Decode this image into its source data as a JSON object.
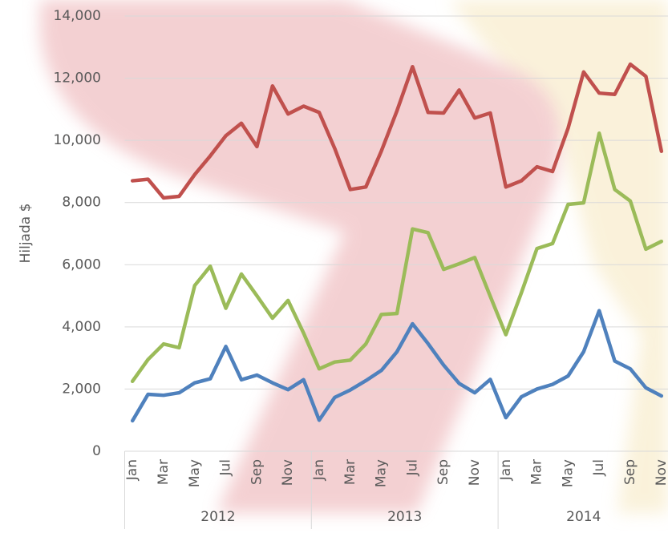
{
  "chart_data": {
    "type": "line",
    "y_axis_label": "Hiljada $",
    "categories": [
      "Jan",
      null,
      "Mar",
      null,
      "May",
      null,
      "Jul",
      null,
      "Sep",
      null,
      "Nov",
      null,
      "Jan",
      null,
      "Mar",
      null,
      "May",
      null,
      "Jul",
      null,
      "Sep",
      null,
      "Nov",
      null,
      "Jan",
      null,
      "Mar",
      null,
      "May",
      null,
      "Jul",
      null,
      "Sep",
      null,
      "Nov"
    ],
    "year_groups": [
      "2012",
      "2013",
      "2014"
    ],
    "months_per_group": 12,
    "series": [
      {
        "color": "#c0504d",
        "values": [
          8700,
          8750,
          8150,
          8200,
          8900,
          9500,
          10150,
          10550,
          9800,
          11750,
          10850,
          11100,
          10900,
          9740,
          8420,
          8500,
          9660,
          10950,
          12370,
          10900,
          10880,
          11620,
          10720,
          10880,
          8500,
          8700,
          9150,
          9000,
          10390,
          12200,
          11520,
          11480,
          12450,
          12060,
          9650
        ]
      },
      {
        "color": "#9bbb59",
        "values": [
          2250,
          2950,
          3450,
          3330,
          5330,
          5950,
          4600,
          5700,
          5000,
          4280,
          4850,
          3800,
          2650,
          2870,
          2930,
          3450,
          4400,
          4430,
          7150,
          7030,
          5850,
          6030,
          6230,
          4980,
          3750,
          5100,
          6520,
          6680,
          7940,
          7990,
          10230,
          8420,
          8050,
          6500,
          6750
        ]
      },
      {
        "color": "#4f81bd",
        "values": [
          980,
          1830,
          1800,
          1880,
          2200,
          2330,
          3370,
          2300,
          2450,
          2200,
          1980,
          2300,
          1000,
          1730,
          1970,
          2270,
          2600,
          3200,
          4100,
          3460,
          2770,
          2180,
          1880,
          2310,
          1080,
          1750,
          2000,
          2150,
          2420,
          3200,
          4520,
          2900,
          2650,
          2040,
          1780
        ]
      }
    ],
    "ylim": [
      0,
      14000
    ],
    "yticks": [
      0,
      {
        "value": 2000,
        "label": "2,000"
      },
      {
        "value": 4000,
        "label": "4,000"
      },
      {
        "value": 6000,
        "label": "6,000"
      },
      {
        "value": 8000,
        "label": "8,000"
      },
      {
        "value": 10000,
        "label": "10,000"
      },
      {
        "value": 12000,
        "label": "12,000"
      },
      {
        "value": 14000,
        "label": "14,000"
      }
    ],
    "grid": true
  }
}
